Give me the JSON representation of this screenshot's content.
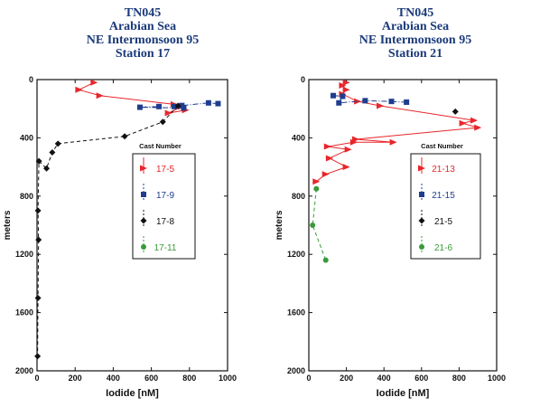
{
  "charts": [
    {
      "title": [
        "TN045",
        "Arabian Sea",
        "NE Intermonsoon 95",
        "Station 17"
      ],
      "xlabel": "Iodide  [nM]",
      "ylabel": "meters",
      "legend_title": "Cast  Number"
    },
    {
      "title": [
        "TN045",
        "Arabian Sea",
        "NE Intermonsoon 95",
        "Station 21"
      ],
      "xlabel": "Iodide  [nM]",
      "ylabel": "meters",
      "legend_title": "Cast  Number"
    }
  ],
  "chart_data": [
    {
      "type": "line",
      "title": "TN045 Arabian Sea NE Intermonsoon 95 Station 17",
      "xlabel": "Iodide [nM]",
      "ylabel": "meters",
      "xlim": [
        0,
        1000
      ],
      "ylim": [
        2000,
        0
      ],
      "y_inverted": true,
      "xticks": [
        0,
        200,
        400,
        600,
        800,
        1000
      ],
      "yticks": [
        0,
        400,
        800,
        1200,
        1600,
        2000
      ],
      "legend_title": "Cast Number",
      "legend_position": "right",
      "series": [
        {
          "name": "17-5",
          "color": "#e8262b",
          "marker": "triangle",
          "line": "solid",
          "points": [
            [
              300,
              20
            ],
            [
              220,
              70
            ],
            [
              330,
              110
            ],
            [
              720,
              170
            ],
            [
              780,
              210
            ],
            [
              690,
              230
            ],
            [
              760,
              185
            ]
          ]
        },
        {
          "name": "17-9",
          "color": "#1f3d8f",
          "marker": "square",
          "line": "dash-dot",
          "points": [
            [
              950,
              165
            ],
            [
              900,
              160
            ],
            [
              760,
              178
            ],
            [
              720,
              185
            ],
            [
              770,
              195
            ],
            [
              540,
              190
            ],
            [
              640,
              185
            ]
          ]
        },
        {
          "name": "17-8",
          "color": "#111111",
          "marker": "diamond",
          "line": "dashed",
          "points": [
            [
              740,
              180
            ],
            [
              660,
              290
            ],
            [
              460,
              390
            ],
            [
              110,
              440
            ],
            [
              80,
              500
            ],
            [
              50,
              610
            ],
            [
              10,
              560
            ],
            [
              5,
              900
            ],
            [
              8,
              1100
            ],
            [
              5,
              1500
            ],
            [
              3,
              1900
            ]
          ]
        },
        {
          "name": "17-11",
          "color": "#3a9a3a",
          "marker": "circle",
          "line": "dashed",
          "points": []
        }
      ]
    },
    {
      "type": "line",
      "title": "TN045 Arabian Sea NE Intermonsoon 95 Station 21",
      "xlabel": "Iodide [nM]",
      "ylabel": "meters",
      "xlim": [
        0,
        1000
      ],
      "ylim": [
        2000,
        0
      ],
      "y_inverted": true,
      "xticks": [
        0,
        200,
        400,
        600,
        800,
        1000
      ],
      "yticks": [
        0,
        400,
        800,
        1200,
        1600,
        2000
      ],
      "legend_title": "Cast Number",
      "legend_position": "right",
      "series": [
        {
          "name": "21-13",
          "color": "#e8262b",
          "marker": "triangle",
          "line": "solid",
          "points": [
            [
              200,
              20
            ],
            [
              180,
              40
            ],
            [
              200,
              70
            ],
            [
              180,
              100
            ],
            [
              260,
              150
            ],
            [
              380,
              180
            ],
            [
              880,
              280
            ],
            [
              820,
              300
            ],
            [
              900,
              330
            ],
            [
              250,
              410
            ],
            [
              450,
              430
            ],
            [
              240,
              430
            ],
            [
              100,
              460
            ],
            [
              210,
              480
            ],
            [
              110,
              540
            ],
            [
              200,
              600
            ],
            [
              90,
              650
            ],
            [
              40,
              700
            ]
          ]
        },
        {
          "name": "21-15",
          "color": "#1f3d8f",
          "marker": "square",
          "line": "dash-dot",
          "points": [
            [
              130,
              110
            ],
            [
              180,
              115
            ],
            [
              160,
              160
            ],
            [
              300,
              145
            ],
            [
              440,
              150
            ],
            [
              520,
              155
            ]
          ]
        },
        {
          "name": "21-5",
          "color": "#111111",
          "marker": "diamond",
          "line": "dashed",
          "points": [
            [
              780,
              220
            ]
          ]
        },
        {
          "name": "21-6",
          "color": "#3a9a3a",
          "marker": "circle",
          "line": "dashed",
          "points": [
            [
              40,
              750
            ],
            [
              20,
              1000
            ],
            [
              90,
              1240
            ]
          ]
        }
      ]
    }
  ]
}
